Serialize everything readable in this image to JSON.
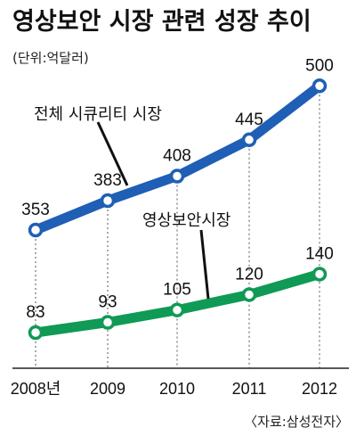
{
  "chart_data": {
    "type": "line",
    "title": "영상보안 시장 관련 성장 추이",
    "subtitle": "(단위:억달러)",
    "categories": [
      "2008년",
      "2009",
      "2010",
      "2011",
      "2012"
    ],
    "series": [
      {
        "name": "전체 시큐리티 시장",
        "values": [
          353,
          383,
          408,
          445,
          500
        ],
        "color": "#1f5fb5"
      },
      {
        "name": "영상보안시장",
        "values": [
          83,
          93,
          105,
          120,
          140
        ],
        "color": "#0f9a55"
      }
    ],
    "source": "〈자료:삼성전자〉",
    "grid": false
  }
}
